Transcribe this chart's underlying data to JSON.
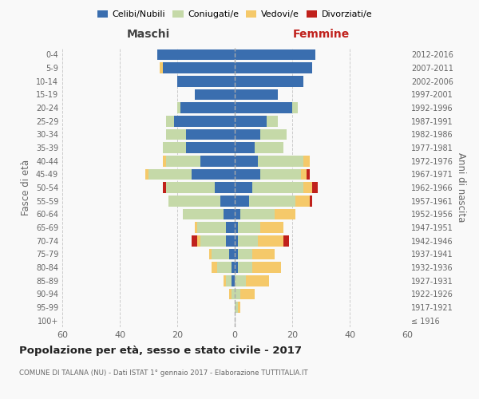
{
  "age_groups": [
    "100+",
    "95-99",
    "90-94",
    "85-89",
    "80-84",
    "75-79",
    "70-74",
    "65-69",
    "60-64",
    "55-59",
    "50-54",
    "45-49",
    "40-44",
    "35-39",
    "30-34",
    "25-29",
    "20-24",
    "15-19",
    "10-14",
    "5-9",
    "0-4"
  ],
  "birth_years": [
    "≤ 1916",
    "1917-1921",
    "1922-1926",
    "1927-1931",
    "1932-1936",
    "1937-1941",
    "1942-1946",
    "1947-1951",
    "1952-1956",
    "1957-1961",
    "1962-1966",
    "1967-1971",
    "1972-1976",
    "1977-1981",
    "1982-1986",
    "1987-1991",
    "1992-1996",
    "1997-2001",
    "2002-2006",
    "2007-2011",
    "2012-2016"
  ],
  "maschi": {
    "celibi": [
      0,
      0,
      0,
      1,
      1,
      2,
      3,
      3,
      4,
      5,
      7,
      15,
      12,
      17,
      17,
      21,
      19,
      14,
      20,
      25,
      27
    ],
    "coniugati": [
      0,
      0,
      1,
      2,
      5,
      6,
      9,
      10,
      14,
      18,
      17,
      15,
      12,
      8,
      7,
      3,
      1,
      0,
      0,
      0,
      0
    ],
    "vedovi": [
      0,
      0,
      1,
      1,
      2,
      1,
      1,
      1,
      0,
      0,
      0,
      1,
      1,
      0,
      0,
      0,
      0,
      0,
      0,
      1,
      0
    ],
    "divorziati": [
      0,
      0,
      0,
      0,
      0,
      0,
      2,
      0,
      0,
      0,
      1,
      0,
      0,
      0,
      0,
      0,
      0,
      0,
      0,
      0,
      0
    ]
  },
  "femmine": {
    "nubili": [
      0,
      0,
      0,
      0,
      1,
      1,
      1,
      1,
      2,
      5,
      6,
      9,
      8,
      7,
      9,
      11,
      20,
      15,
      24,
      27,
      28
    ],
    "coniugate": [
      0,
      1,
      2,
      4,
      5,
      5,
      7,
      8,
      12,
      16,
      18,
      14,
      16,
      10,
      9,
      4,
      2,
      0,
      0,
      0,
      0
    ],
    "vedove": [
      0,
      1,
      5,
      8,
      10,
      8,
      9,
      8,
      7,
      5,
      3,
      2,
      2,
      0,
      0,
      0,
      0,
      0,
      0,
      0,
      0
    ],
    "divorziate": [
      0,
      0,
      0,
      0,
      0,
      0,
      2,
      0,
      0,
      1,
      2,
      1,
      0,
      0,
      0,
      0,
      0,
      0,
      0,
      0,
      0
    ]
  },
  "colors": {
    "celibi": "#3a6eaf",
    "coniugati": "#c5d9a8",
    "vedovi": "#f5c96a",
    "divorziati": "#c0211c"
  },
  "legend_labels": [
    "Celibi/Nubili",
    "Coniugati/e",
    "Vedovi/e",
    "Divorziati/e"
  ],
  "xlim": 60,
  "title": "Popolazione per età, sesso e stato civile - 2017",
  "subtitle": "COMUNE DI TALANA (NU) - Dati ISTAT 1° gennaio 2017 - Elaborazione TUTTITALIA.IT",
  "ylabel_left": "Fasce di età",
  "ylabel_right": "Anni di nascita",
  "xlabel_left": "Maschi",
  "xlabel_right": "Femmine",
  "maschi_color": "#444444",
  "femmine_color": "#c0211c",
  "bg_color": "#f9f9f9",
  "grid_color": "#cccccc"
}
